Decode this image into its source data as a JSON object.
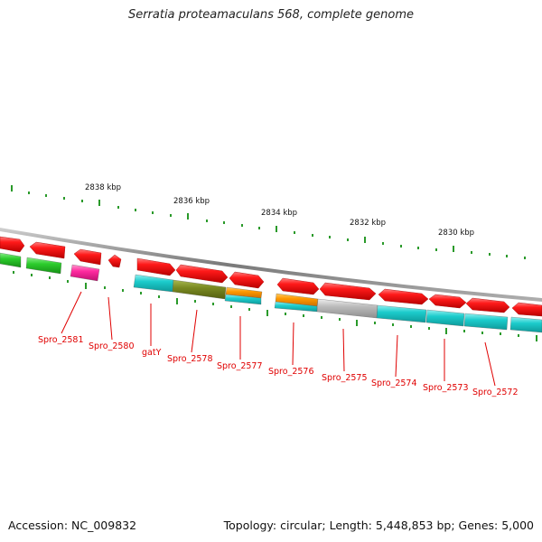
{
  "title": "Serratia proteamaculans 568, complete genome",
  "accession": "Accession: NC_009832",
  "summary": "Topology: circular; Length: 5,448,853 bp; Genes: 5,000",
  "scale_labels": [
    "2838 kbp",
    "2836 kbp",
    "2834 kbp",
    "2832 kbp",
    "2830 kbp"
  ],
  "gene_labels": [
    "Spro_2581",
    "Spro_2580",
    "gatY",
    "Spro_2578",
    "Spro_2577",
    "Spro_2576",
    "Spro_2575",
    "Spro_2574",
    "Spro_2573",
    "Spro_2572"
  ],
  "colors": {
    "cds": "#ff1a1a",
    "backbone": "#8c8c8c",
    "label": "#e00000",
    "tick": "#2a9a2a",
    "cog_green": "#33cc33",
    "cog_magenta": "#ff33aa",
    "cog_cyan": "#22cccc",
    "cog_olive": "#7a8a22",
    "cog_orange": "#ff9900",
    "cog_gray": "#bbbbbb"
  }
}
